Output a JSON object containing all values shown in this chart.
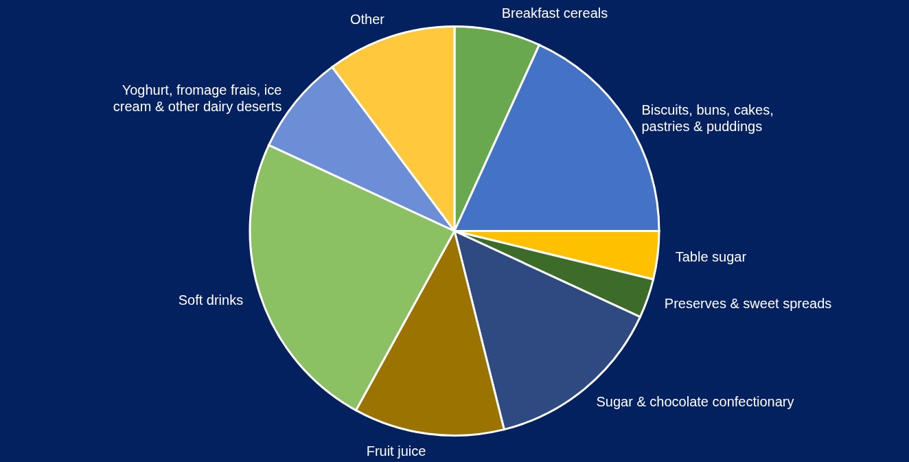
{
  "chart_data": {
    "type": "pie",
    "categories": [
      "Breakfast cereals",
      "Biscuits, buns, cakes, pastries & puddings",
      "Table sugar",
      "Preserves & sweet spreads",
      "Sugar & chocolate confectionary",
      "Fruit juice",
      "Soft drinks",
      "Yoghurt, fromage frais, ice cream & other dairy deserts",
      "Other"
    ],
    "values": [
      6.8,
      18.2,
      3.8,
      3.1,
      14.2,
      11.9,
      23.9,
      7.9,
      10.2
    ],
    "colors": [
      "#6aa84f",
      "#4472c4",
      "#ffc000",
      "#3d6b2a",
      "#2e4a80",
      "#9a7300",
      "#8cc163",
      "#6c8ed6",
      "#ffc83d"
    ]
  }
}
